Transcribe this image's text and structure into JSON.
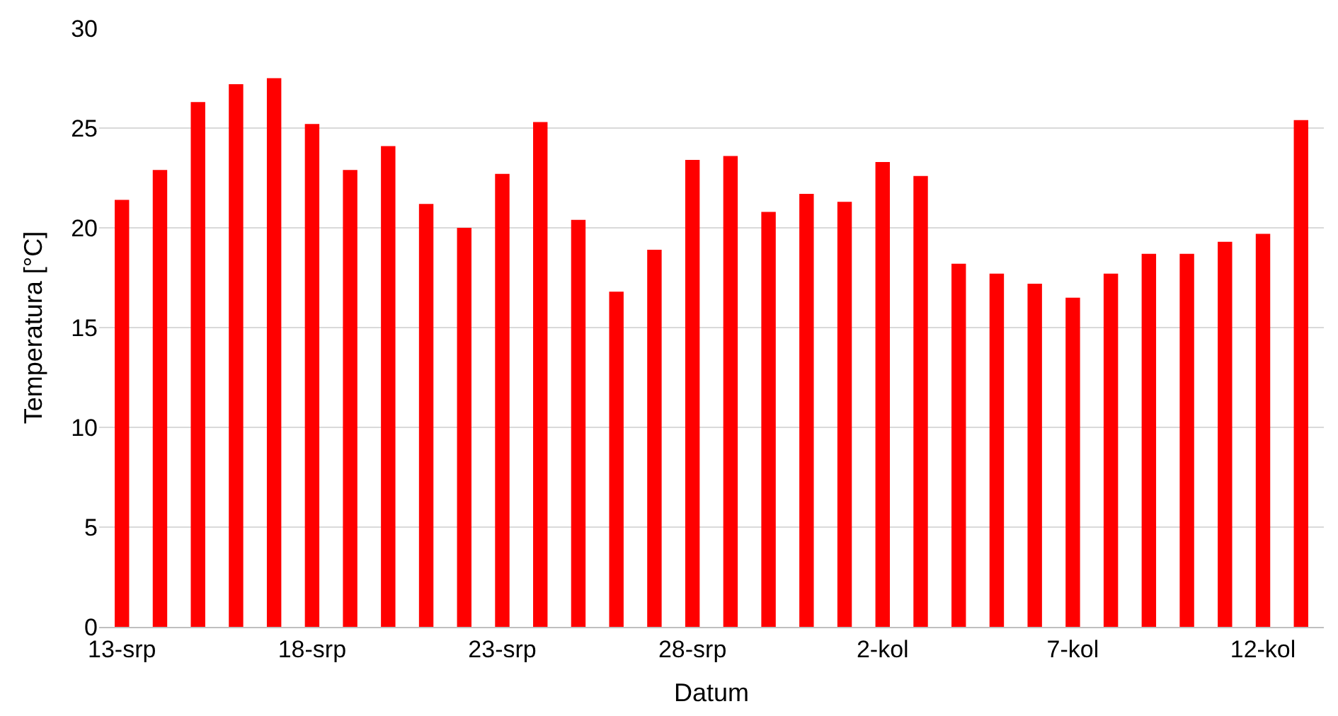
{
  "chart_data": {
    "type": "bar",
    "xlabel": "Datum",
    "ylabel": "Temperatura [°C]",
    "categories": [
      "13-srp",
      null,
      null,
      null,
      null,
      "18-srp",
      null,
      null,
      null,
      null,
      "23-srp",
      null,
      null,
      null,
      null,
      "28-srp",
      null,
      null,
      null,
      null,
      "2-kol",
      null,
      null,
      null,
      null,
      "7-kol",
      null,
      null,
      null,
      null,
      "12-kol",
      null
    ],
    "values": [
      21.4,
      22.9,
      26.3,
      27.2,
      27.5,
      25.2,
      22.9,
      24.1,
      21.2,
      20.0,
      22.7,
      25.3,
      20.4,
      16.8,
      18.9,
      23.4,
      23.6,
      20.8,
      21.7,
      21.3,
      23.3,
      22.6,
      18.2,
      17.7,
      17.2,
      16.5,
      17.7,
      18.7,
      18.7,
      19.3,
      19.7,
      25.4
    ],
    "color": "#ff0000",
    "ylim": [
      0,
      30
    ],
    "yticks": [
      0,
      5,
      10,
      15,
      20,
      25,
      30
    ],
    "grid": "y"
  }
}
